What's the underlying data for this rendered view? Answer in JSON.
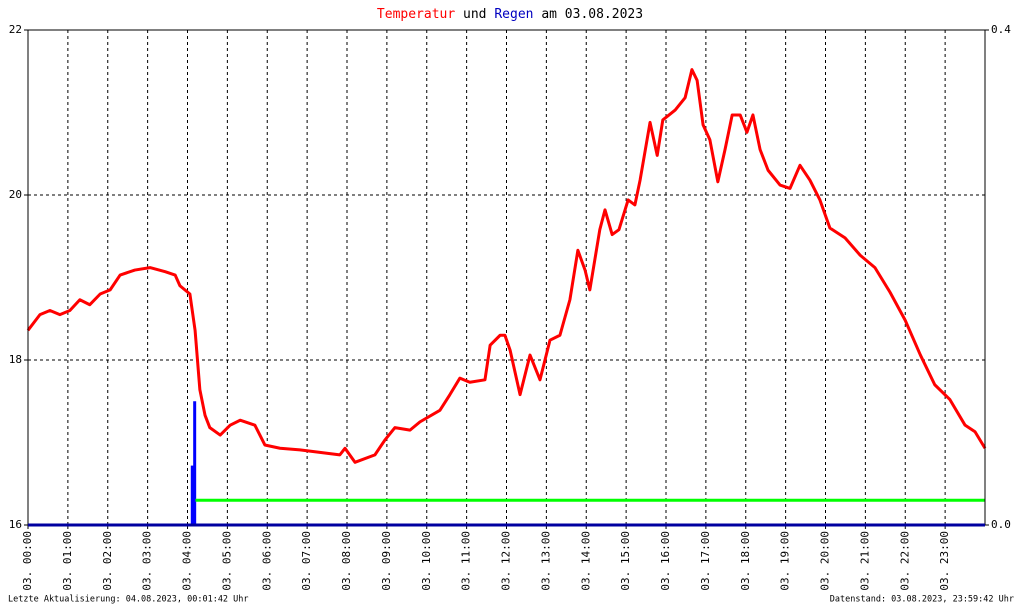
{
  "chart_data": {
    "type": "line",
    "title_parts": [
      {
        "text": "Temperatur",
        "color": "#ff0000"
      },
      {
        "text": "und",
        "color": "#000000"
      },
      {
        "text": "Regen",
        "color": "#0000c0"
      },
      {
        "text": "am 03.08.2023",
        "color": "#000000"
      }
    ],
    "xlim": [
      0,
      24
    ],
    "xticks": [
      {
        "value": 0,
        "label": "03. 00:00"
      },
      {
        "value": 1,
        "label": "03. 01:00"
      },
      {
        "value": 2,
        "label": "03. 02:00"
      },
      {
        "value": 3,
        "label": "03. 03:00"
      },
      {
        "value": 4,
        "label": "03. 04:00"
      },
      {
        "value": 5,
        "label": "03. 05:00"
      },
      {
        "value": 6,
        "label": "03. 06:00"
      },
      {
        "value": 7,
        "label": "03. 07:00"
      },
      {
        "value": 8,
        "label": "03. 08:00"
      },
      {
        "value": 9,
        "label": "03. 09:00"
      },
      {
        "value": 10,
        "label": "03. 10:00"
      },
      {
        "value": 11,
        "label": "03. 11:00"
      },
      {
        "value": 12,
        "label": "03. 12:00"
      },
      {
        "value": 13,
        "label": "03. 13:00"
      },
      {
        "value": 14,
        "label": "03. 14:00"
      },
      {
        "value": 15,
        "label": "03. 15:00"
      },
      {
        "value": 16,
        "label": "03. 16:00"
      },
      {
        "value": 17,
        "label": "03. 17:00"
      },
      {
        "value": 18,
        "label": "03. 18:00"
      },
      {
        "value": 19,
        "label": "03. 19:00"
      },
      {
        "value": 20,
        "label": "03. 20:00"
      },
      {
        "value": 21,
        "label": "03. 21:00"
      },
      {
        "value": 22,
        "label": "03. 22:00"
      },
      {
        "value": 23,
        "label": "03. 23:00"
      }
    ],
    "ylim": [
      16,
      22
    ],
    "yticks": [
      16,
      18,
      20,
      22
    ],
    "y2lim": [
      0,
      0.4
    ],
    "y2ticks": [
      {
        "value": 0,
        "label": "0.0"
      },
      0.4
    ],
    "grid": true,
    "series": [
      {
        "type": "line",
        "color": "#ff0000",
        "x": [
          0,
          0.3,
          0.55,
          0.8,
          1.05,
          1.3,
          1.55,
          1.81,
          2.06,
          2.31,
          2.68,
          3.06,
          3.44,
          3.69,
          3.81,
          4.06,
          4.19,
          4.31,
          4.44,
          4.56,
          4.82,
          5.07,
          5.32,
          5.69,
          5.94,
          6.32,
          6.82,
          7.32,
          7.82,
          7.95,
          8.2,
          8.7,
          8.95,
          9.2,
          9.58,
          9.83,
          10.33,
          10.58,
          10.83,
          11.08,
          11.46,
          11.59,
          11.84,
          11.96,
          12.09,
          12.34,
          12.59,
          12.84,
          13.09,
          13.34,
          13.59,
          13.79,
          13.97,
          14.09,
          14.34,
          14.47,
          14.65,
          14.82,
          15.05,
          15.22,
          15.35,
          15.6,
          15.78,
          15.92,
          16.23,
          16.48,
          16.65,
          16.78,
          16.93,
          17.1,
          17.3,
          17.48,
          17.66,
          17.86,
          18.03,
          18.18,
          18.36,
          18.56,
          18.86,
          19.11,
          19.36,
          19.61,
          19.86,
          20.11,
          20.49,
          20.87,
          21.24,
          21.62,
          22.0,
          22.38,
          22.74,
          23.12,
          23.5,
          23.75,
          24.0
        ],
        "values": [
          18.36,
          18.55,
          18.6,
          18.55,
          18.6,
          18.73,
          18.67,
          18.8,
          18.85,
          19.03,
          19.09,
          19.12,
          19.07,
          19.03,
          18.9,
          18.8,
          18.36,
          17.64,
          17.33,
          17.18,
          17.09,
          17.21,
          17.27,
          17.21,
          16.97,
          16.93,
          16.91,
          16.88,
          16.85,
          16.93,
          16.76,
          16.85,
          17.03,
          17.18,
          17.15,
          17.25,
          17.39,
          17.58,
          17.78,
          17.73,
          17.76,
          18.18,
          18.3,
          18.3,
          18.12,
          17.58,
          18.06,
          17.76,
          18.24,
          18.3,
          18.73,
          19.33,
          19.09,
          18.85,
          19.58,
          19.82,
          19.52,
          19.58,
          19.94,
          19.88,
          20.18,
          20.88,
          20.48,
          20.91,
          21.03,
          21.18,
          21.52,
          21.39,
          20.85,
          20.67,
          20.16,
          20.55,
          20.97,
          20.97,
          20.76,
          20.97,
          20.55,
          20.3,
          20.12,
          20.08,
          20.36,
          20.18,
          19.94,
          19.6,
          19.48,
          19.27,
          19.12,
          18.82,
          18.48,
          18.06,
          17.7,
          17.52,
          17.21,
          17.13,
          16.93
        ]
      },
      {
        "type": "bar",
        "color": "#0000ff",
        "axis": "y2",
        "x": [
          4.12,
          4.18
        ],
        "values": [
          0.048,
          0.1
        ]
      },
      {
        "type": "line",
        "color": "#00ff00",
        "axis": "y2",
        "x": [
          4.2,
          24
        ],
        "values": [
          0.02,
          0.02
        ]
      }
    ]
  },
  "footer": {
    "left": "Letzte Aktualisierung: 04.08.2023, 00:01:42 Uhr",
    "right": "Datenstand: 03.08.2023, 23:59:42 Uhr"
  }
}
